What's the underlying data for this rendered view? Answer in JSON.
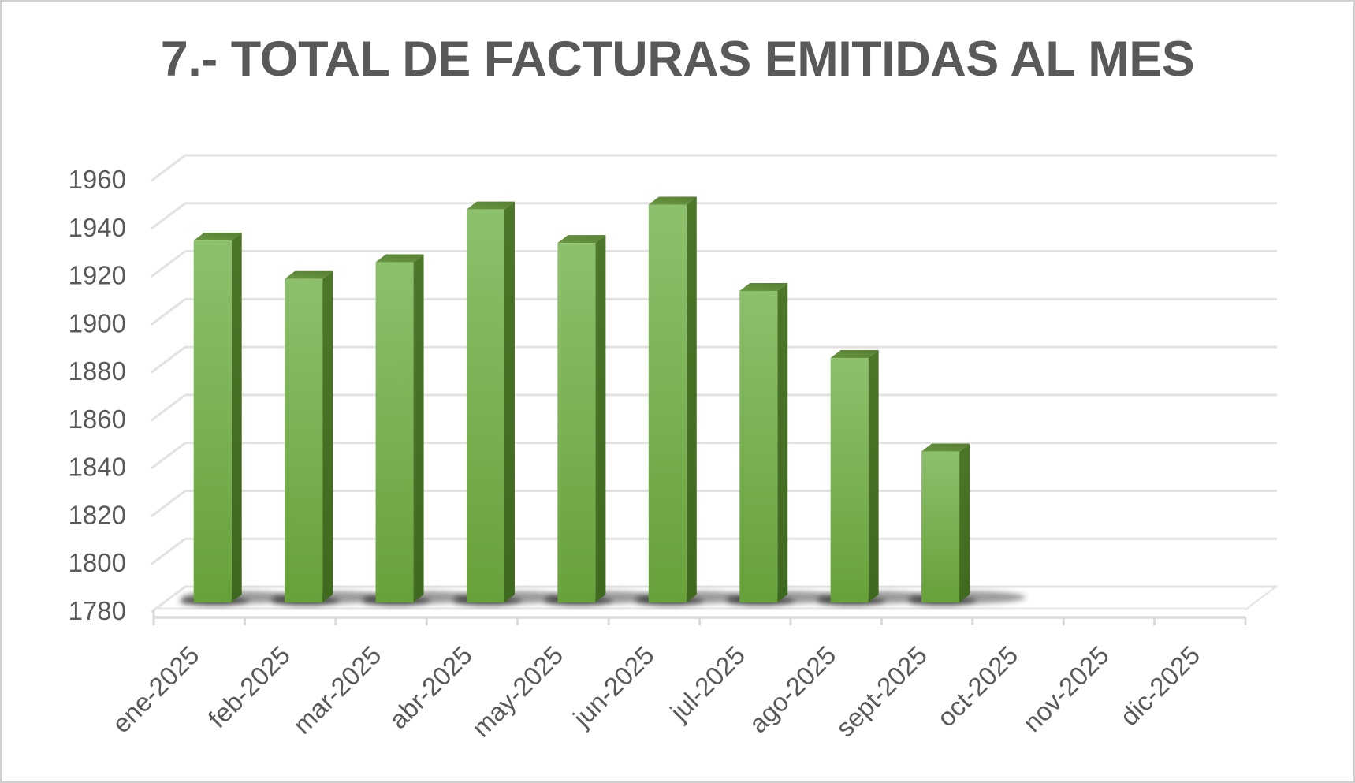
{
  "title": "7.- TOTAL DE FACTURAS EMITIDAS AL MES",
  "chart_data": {
    "type": "bar",
    "style": "3d-column",
    "title": "7.- TOTAL DE FACTURAS EMITIDAS AL MES",
    "categories": [
      "ene-2025",
      "feb-2025",
      "mar-2025",
      "abr-2025",
      "may-2025",
      "jun-2025",
      "jul-2025",
      "ago-2025",
      "sept-2025",
      "oct-2025",
      "nov-2025",
      "dic-2025"
    ],
    "values": [
      1931,
      1915,
      1922,
      1944,
      1930,
      1946,
      1910,
      1882,
      1843,
      null,
      null,
      null
    ],
    "yticks": [
      1780,
      1800,
      1820,
      1840,
      1860,
      1880,
      1900,
      1920,
      1940,
      1960
    ],
    "ylim": [
      1780,
      1960
    ],
    "ytick_step": 20,
    "xlabel": "",
    "ylabel": "",
    "legend": "none",
    "gridlines": true,
    "x_label_rotation_deg": -45,
    "colors": {
      "bar_front_top": "#8dc06c",
      "bar_front_bottom": "#67a139",
      "bar_side_top": "#4c7629",
      "bar_side_bottom": "#3e691f",
      "bar_top_light": "#699741",
      "bar_top_dark": "#577f31",
      "gridline": "#e2e2e2",
      "axis_line": "#d9d9d9",
      "label": "#595959",
      "title": "#595959",
      "shadow": "#3a3a3a",
      "background": "#ffffff"
    }
  }
}
